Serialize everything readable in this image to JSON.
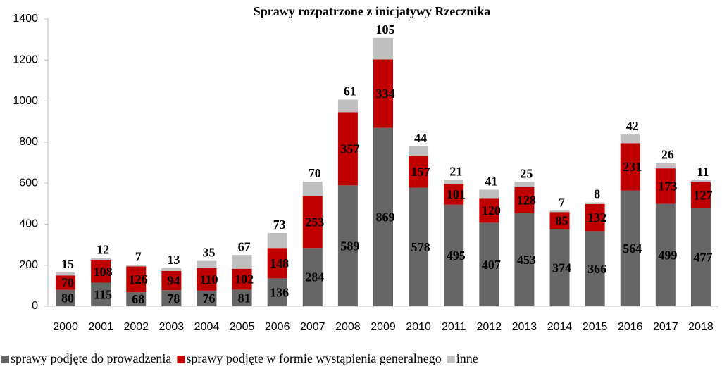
{
  "chart_data": {
    "type": "stacked_bar",
    "title": "Sprawy rozpatrzone z inicjatywy Rzecznika",
    "categories": [
      "2000",
      "2001",
      "2002",
      "2003",
      "2004",
      "2005",
      "2006",
      "2007",
      "2008",
      "2009",
      "2010",
      "2011",
      "2012",
      "2013",
      "2014",
      "2015",
      "2016",
      "2017",
      "2018"
    ],
    "series": [
      {
        "name": "sprawy podjęte do prowadzenia",
        "color": "#666666",
        "values": [
          80,
          115,
          68,
          78,
          76,
          81,
          136,
          284,
          589,
          869,
          578,
          495,
          407,
          453,
          374,
          366,
          564,
          499,
          477
        ]
      },
      {
        "name": "sprawy podjęte w formie wystąpienia generalnego",
        "color": "#c00000",
        "values": [
          70,
          108,
          126,
          94,
          110,
          102,
          148,
          253,
          357,
          334,
          157,
          101,
          120,
          128,
          85,
          132,
          231,
          173,
          127
        ]
      },
      {
        "name": "inne",
        "color": "#bfbfbf",
        "values": [
          15,
          12,
          7,
          13,
          35,
          67,
          73,
          70,
          61,
          105,
          44,
          21,
          41,
          25,
          7,
          8,
          42,
          26,
          11
        ]
      }
    ],
    "ylim": [
      0,
      1400
    ],
    "yticks": [
      0,
      200,
      400,
      600,
      800,
      1000,
      1200,
      1400
    ],
    "legend": "bottom"
  }
}
